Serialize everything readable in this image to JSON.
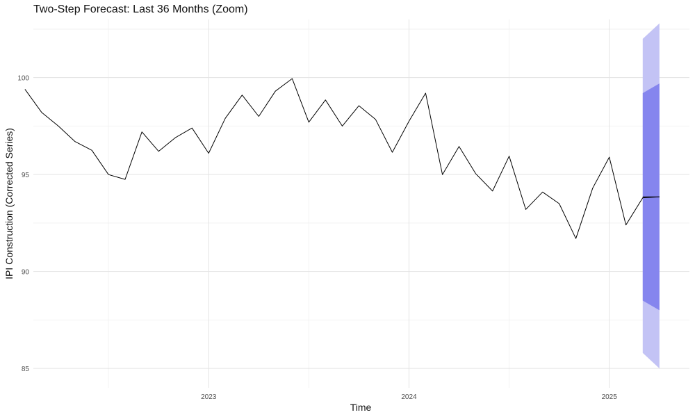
{
  "chart_data": {
    "type": "line",
    "title": "Two-Step Forecast: Last 36 Months (Zoom)",
    "xlabel": "Time",
    "ylabel": "IPI Construction (Corrected Series)",
    "xlim": [
      2022.125,
      2025.4
    ],
    "ylim": [
      84.0,
      103.0
    ],
    "x_ticks": [
      {
        "value": 2023,
        "label": "2023"
      },
      {
        "value": 2024,
        "label": "2024"
      },
      {
        "value": 2025,
        "label": "2025"
      }
    ],
    "x_minor_ticks": [
      2022.5,
      2023.5,
      2024.5
    ],
    "y_ticks": [
      {
        "value": 85,
        "label": "85"
      },
      {
        "value": 90,
        "label": "90"
      },
      {
        "value": 95,
        "label": "95"
      },
      {
        "value": 100,
        "label": "100"
      }
    ],
    "y_minor_ticks": [
      87.5,
      92.5,
      97.5,
      102.5
    ],
    "grid": true,
    "series": [
      {
        "color": "#000000",
        "x": [
          2022.083,
          2022.167,
          2022.25,
          2022.333,
          2022.417,
          2022.5,
          2022.583,
          2022.667,
          2022.75,
          2022.833,
          2022.917,
          2023.0,
          2023.083,
          2023.167,
          2023.25,
          2023.333,
          2023.417,
          2023.5,
          2023.583,
          2023.667,
          2023.75,
          2023.833,
          2023.917,
          2024.0,
          2024.083,
          2024.167,
          2024.25,
          2024.333,
          2024.417,
          2024.5,
          2024.583,
          2024.667,
          2024.75,
          2024.833,
          2024.917,
          2025.0,
          2025.083,
          2025.167,
          2025.25
        ],
        "values": [
          99.4,
          98.2,
          97.5,
          96.7,
          96.25,
          95.0,
          94.75,
          97.2,
          96.2,
          96.9,
          97.4,
          96.1,
          97.9,
          99.1,
          98.0,
          99.3,
          99.95,
          97.7,
          98.85,
          97.5,
          98.55,
          97.85,
          96.15,
          97.75,
          99.2,
          95.0,
          96.45,
          95.05,
          94.15,
          95.95,
          93.2,
          94.1,
          93.5,
          91.7,
          94.3,
          95.9,
          92.4,
          93.8,
          93.85
        ]
      },
      {
        "color": "#000000",
        "x": [
          2025.167,
          2025.25
        ],
        "values": [
          93.85,
          93.85
        ]
      }
    ],
    "forecast_intervals": [
      {
        "color": "#c3c3f5",
        "x": [
          2025.167,
          2025.25
        ],
        "lower": [
          85.8,
          85.0
        ],
        "upper": [
          102.0,
          102.8
        ]
      },
      {
        "color": "#8585ee",
        "x": [
          2025.167,
          2025.25
        ],
        "lower": [
          88.5,
          88.0
        ],
        "upper": [
          99.2,
          99.7
        ]
      }
    ]
  }
}
